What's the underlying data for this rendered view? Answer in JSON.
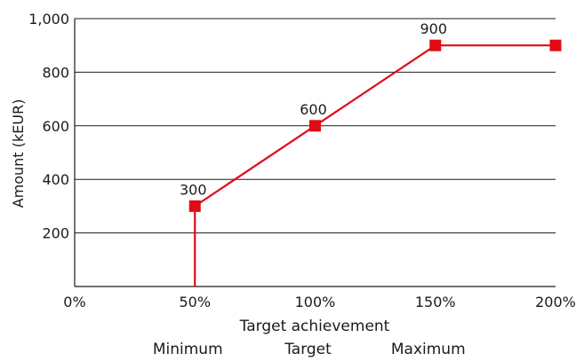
{
  "chart_data": {
    "type": "line",
    "title": "",
    "xlabel": "Target achievement",
    "ylabel": "Amount (kEUR)",
    "x_ticks": [
      "0%",
      "50%",
      "100%",
      "150%",
      "200%"
    ],
    "y_ticks": [
      "200",
      "400",
      "600",
      "800",
      "1,000"
    ],
    "xlim": [
      0,
      200
    ],
    "ylim": [
      0,
      1000
    ],
    "grid": "horizontal",
    "series": [
      {
        "x": [
          50,
          50,
          100,
          150,
          200
        ],
        "y": [
          0,
          300,
          600,
          900,
          900
        ],
        "markers": [
          [
            50,
            300
          ],
          [
            100,
            600
          ],
          [
            150,
            900
          ],
          [
            200,
            900
          ]
        ],
        "color": "#e00b14"
      }
    ],
    "data_labels": [
      {
        "x": 50,
        "y": 300,
        "text": "300"
      },
      {
        "x": 100,
        "y": 600,
        "text": "600"
      },
      {
        "x": 150,
        "y": 900,
        "text": "900"
      }
    ],
    "annotations": [
      {
        "x": 50,
        "text": "Minimum"
      },
      {
        "x": 100,
        "text": "Target"
      },
      {
        "x": 150,
        "text": "Maximum"
      }
    ]
  }
}
